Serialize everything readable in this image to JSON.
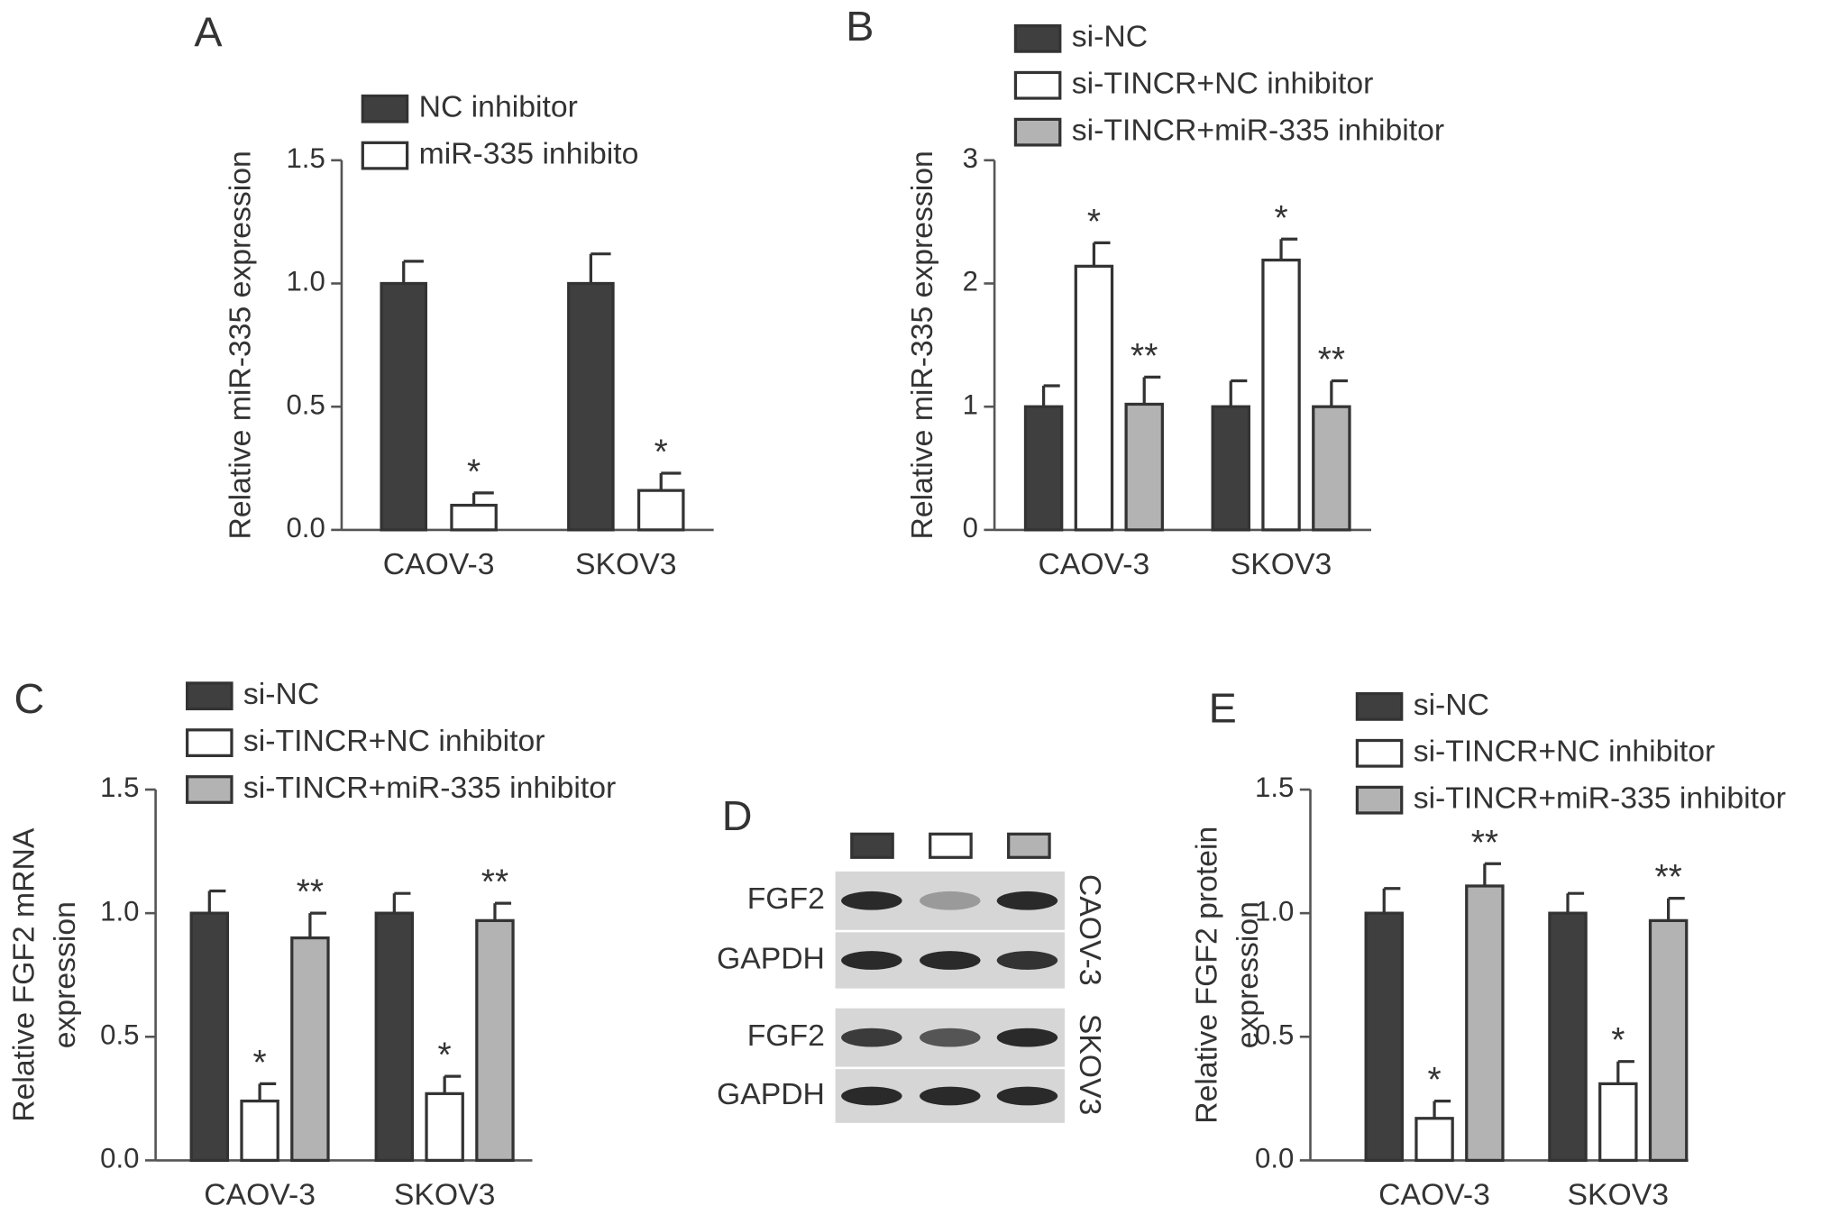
{
  "chart_data": [
    {
      "type": "bar",
      "panel": "A",
      "ylabel": [
        "Relative miR-335 expression"
      ],
      "categories": [
        "CAOV-3",
        "SKOV3"
      ],
      "series": [
        {
          "name": "NC inhibitor",
          "color": "#3f3f3f",
          "values": [
            1.0,
            1.0
          ],
          "errors": [
            0.09,
            0.12
          ],
          "significance": [
            null,
            null
          ]
        },
        {
          "name": "miR-335 inhibito",
          "color": "#ffffff",
          "values": [
            0.1,
            0.16
          ],
          "errors": [
            0.05,
            0.07
          ],
          "significance": [
            "*",
            "*"
          ]
        }
      ],
      "ylim": [
        0,
        1.5
      ],
      "yticks": [
        {
          "value": 0,
          "label": "0.0"
        },
        0.5,
        {
          "value": 1,
          "label": "1.0"
        },
        1.5
      ]
    },
    {
      "type": "bar",
      "panel": "B",
      "ylabel": [
        "Relative miR-335 expression"
      ],
      "categories": [
        "CAOV-3",
        "SKOV3"
      ],
      "series": [
        {
          "name": "si-NC",
          "color": "#3f3f3f",
          "values": [
            1.0,
            1.0
          ],
          "errors": [
            0.17,
            0.21
          ],
          "significance": [
            null,
            null
          ]
        },
        {
          "name": "si-TINCR+NC inhibitor",
          "color": "#ffffff",
          "values": [
            2.14,
            2.19
          ],
          "errors": [
            0.19,
            0.17
          ],
          "significance": [
            "*",
            "*"
          ]
        },
        {
          "name": "si-TINCR+miR-335 inhibitor",
          "color": "#b3b3b3",
          "values": [
            1.02,
            1.0
          ],
          "errors": [
            0.22,
            0.21
          ],
          "significance": [
            "**",
            "**"
          ]
        }
      ],
      "ylim": [
        0,
        3
      ],
      "yticks": [
        0,
        1,
        2,
        3
      ]
    },
    {
      "type": "bar",
      "panel": "C",
      "ylabel": [
        "Relative FGF2 mRNA",
        "expression"
      ],
      "categories": [
        "CAOV-3",
        "SKOV3"
      ],
      "series": [
        {
          "name": "si-NC",
          "color": "#3f3f3f",
          "values": [
            1.0,
            1.0
          ],
          "errors": [
            0.09,
            0.08
          ],
          "significance": [
            null,
            null
          ]
        },
        {
          "name": "si-TINCR+NC inhibitor",
          "color": "#ffffff",
          "values": [
            0.24,
            0.27
          ],
          "errors": [
            0.07,
            0.07
          ],
          "significance": [
            "*",
            "*"
          ]
        },
        {
          "name": "si-TINCR+miR-335 inhibitor",
          "color": "#b3b3b3",
          "values": [
            0.9,
            0.97
          ],
          "errors": [
            0.1,
            0.07
          ],
          "significance": [
            "**",
            "**"
          ]
        }
      ],
      "ylim": [
        0,
        1.5
      ],
      "yticks": [
        {
          "value": 0,
          "label": "0.0"
        },
        0.5,
        {
          "value": 1,
          "label": "1.0"
        },
        1.5
      ]
    },
    {
      "type": "bar",
      "panel": "E",
      "ylabel": [
        "Relative FGF2 protein",
        "expression"
      ],
      "categories": [
        "CAOV-3",
        "SKOV3"
      ],
      "series": [
        {
          "name": "si-NC",
          "color": "#3f3f3f",
          "values": [
            1.0,
            1.0
          ],
          "errors": [
            0.1,
            0.08
          ],
          "significance": [
            null,
            null
          ]
        },
        {
          "name": "si-TINCR+NC inhibitor",
          "color": "#ffffff",
          "values": [
            0.17,
            0.31
          ],
          "errors": [
            0.07,
            0.09
          ],
          "significance": [
            "*",
            "*"
          ]
        },
        {
          "name": "si-TINCR+miR-335 inhibitor",
          "color": "#b3b3b3",
          "values": [
            1.11,
            0.97
          ],
          "errors": [
            0.09,
            0.09
          ],
          "significance": [
            "**",
            "**"
          ]
        }
      ],
      "ylim": [
        0,
        1.5
      ],
      "yticks": [
        {
          "value": 0,
          "label": "0.0"
        },
        0.5,
        {
          "value": 1,
          "label": "1.0"
        },
        1.5
      ]
    }
  ],
  "blot": {
    "panel": "D",
    "row_labels": [
      "FGF2",
      "GAPDH",
      "FGF2",
      "GAPDH"
    ],
    "cell_lines": [
      "CAOV-3",
      "SKOV3"
    ]
  }
}
